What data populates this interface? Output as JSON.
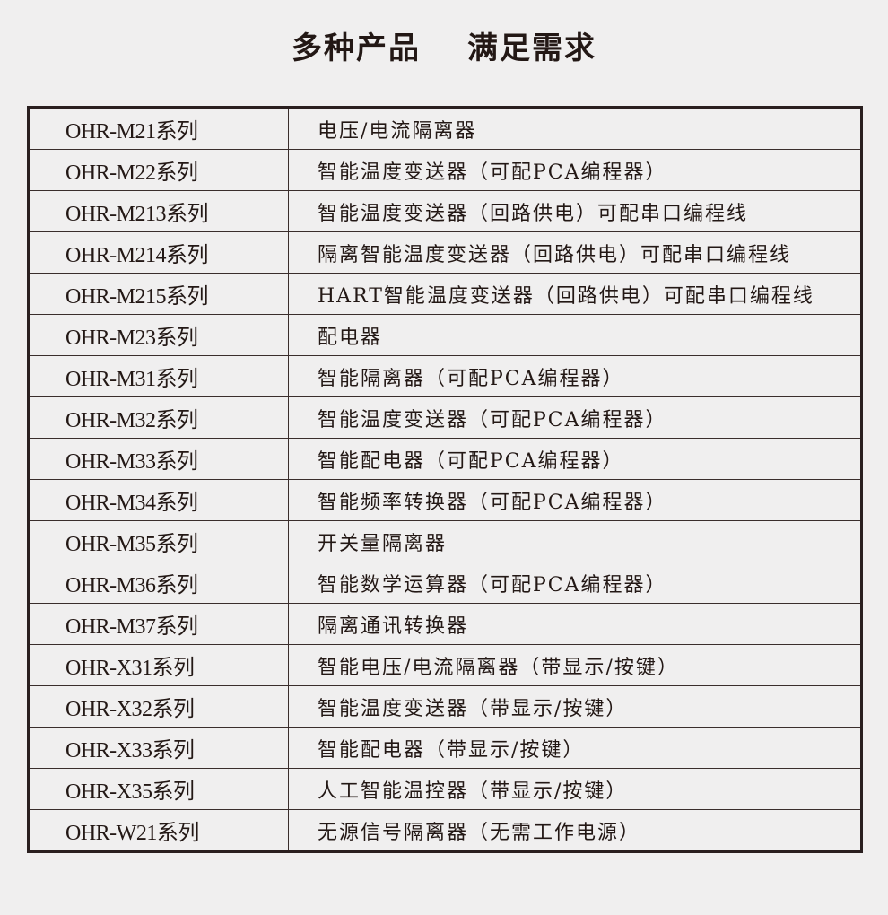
{
  "title": [
    "多种产品",
    "满足需求"
  ],
  "rows": [
    [
      "OHR-M21系列",
      "电压/电流隔离器"
    ],
    [
      "OHR-M22系列",
      "智能温度变送器（可配PCA编程器）"
    ],
    [
      "OHR-M213系列",
      "智能温度变送器（回路供电）可配串口编程线"
    ],
    [
      "OHR-M214系列",
      "隔离智能温度变送器（回路供电）可配串口编程线"
    ],
    [
      "OHR-M215系列",
      "HART智能温度变送器（回路供电）可配串口编程线"
    ],
    [
      "OHR-M23系列",
      "配电器"
    ],
    [
      "OHR-M31系列",
      "智能隔离器（可配PCA编程器）"
    ],
    [
      "OHR-M32系列",
      "智能温度变送器（可配PCA编程器）"
    ],
    [
      "OHR-M33系列",
      "智能配电器（可配PCA编程器）"
    ],
    [
      "OHR-M34系列",
      "智能频率转换器（可配PCA编程器）"
    ],
    [
      "OHR-M35系列",
      "开关量隔离器"
    ],
    [
      "OHR-M36系列",
      "智能数学运算器（可配PCA编程器）"
    ],
    [
      "OHR-M37系列",
      "隔离通讯转换器"
    ],
    [
      "OHR-X31系列",
      "智能电压/电流隔离器（带显示/按键）"
    ],
    [
      "OHR-X32系列",
      "智能温度变送器（带显示/按键）"
    ],
    [
      "OHR-X33系列",
      "智能配电器（带显示/按键）"
    ],
    [
      "OHR-X35系列",
      "人工智能温控器（带显示/按键）"
    ],
    [
      "OHR-W21系列",
      "无源信号隔离器（无需工作电源）"
    ]
  ]
}
